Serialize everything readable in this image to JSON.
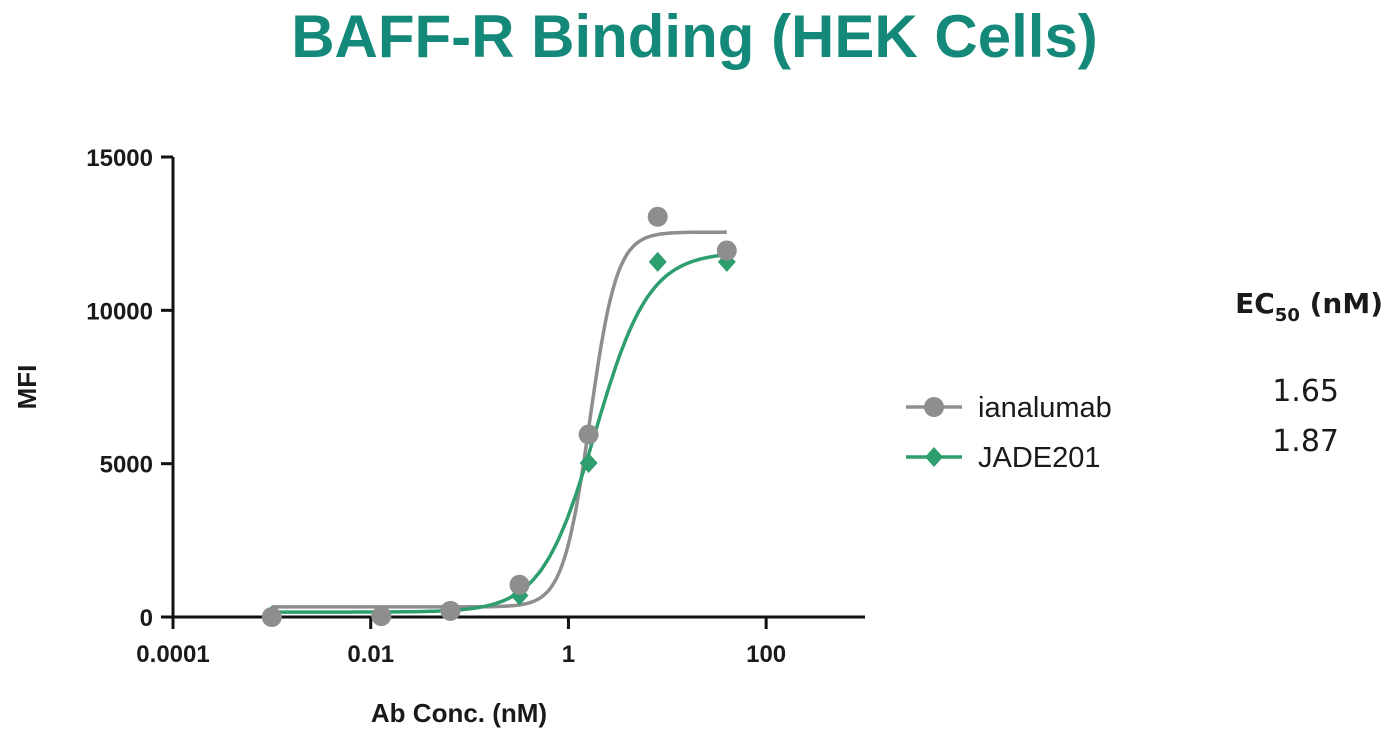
{
  "chart_data": {
    "type": "scatter",
    "title": "BAFF-R Binding (HEK Cells)",
    "xlabel": "Ab Conc. (nM)",
    "ylabel": "MFI",
    "xscale": "log",
    "xlim": [
      0.0001,
      1000
    ],
    "ylim": [
      0,
      15000
    ],
    "xticks": [
      0.0001,
      0.01,
      1,
      100
    ],
    "xtick_labels": [
      "0.0001",
      "0.01",
      "1",
      "100"
    ],
    "yticks": [
      0,
      5000,
      10000,
      15000
    ],
    "ytick_labels": [
      "0",
      "5000",
      "10000",
      "15000"
    ],
    "grid": false,
    "legend_position": "right",
    "ec50_header": {
      "main": "EC",
      "sub": "50",
      "unit": " (nM)"
    },
    "x": [
      0.001,
      0.0128,
      0.064,
      0.32,
      1.6,
      8,
      40
    ],
    "series": [
      {
        "name": "ianalumab",
        "color": "#8e8e8e",
        "marker": "circle",
        "ec50_label": "1.65",
        "values": [
          0,
          30,
          200,
          1050,
          5950,
          13050,
          11950
        ],
        "fit": {
          "bottom": 330,
          "top": 12550,
          "ec50": 1.65,
          "hill": 3.2
        }
      },
      {
        "name": "JADE201",
        "color": "#2e9e6e",
        "marker": "diamond",
        "ec50_label": "1.87",
        "values": [
          50,
          50,
          200,
          700,
          5020,
          11580,
          11580
        ],
        "fit": {
          "bottom": 160,
          "top": 11900,
          "ec50": 1.87,
          "hill": 1.6
        }
      }
    ]
  }
}
